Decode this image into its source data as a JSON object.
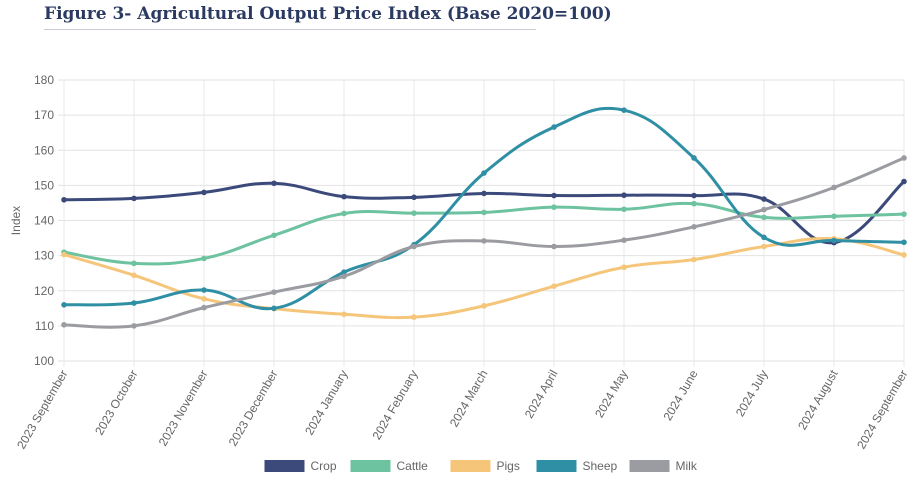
{
  "figure": {
    "title": "Figure 3- Agricultural Output Price Index (Base 2020=100)"
  },
  "chart_data": {
    "type": "line",
    "title": "Figure 3- Agricultural Output Price Index (Base 2020=100)",
    "xlabel": "",
    "ylabel": "Index",
    "ylim": [
      100,
      180
    ],
    "yticks": [
      100,
      110,
      120,
      130,
      140,
      150,
      160,
      170,
      180
    ],
    "grid": true,
    "legend_position": "bottom",
    "categories": [
      "2023 September",
      "2023 October",
      "2023 November",
      "2023 December",
      "2024 January",
      "2024 February",
      "2024 March",
      "2024 April",
      "2024 May",
      "2024 June",
      "2024 July",
      "2024 August",
      "2024 September"
    ],
    "series": [
      {
        "name": "Crop",
        "color": "#3b4a7a",
        "values": [
          145.9,
          146.3,
          148.0,
          150.6,
          146.8,
          146.6,
          147.7,
          147.1,
          147.2,
          147.1,
          146.1,
          133.7,
          151.1
        ]
      },
      {
        "name": "Cattle",
        "color": "#6dc29f",
        "values": [
          131.0,
          127.8,
          129.2,
          135.8,
          142.0,
          142.1,
          142.3,
          143.8,
          143.2,
          144.8,
          140.9,
          141.2,
          141.8
        ]
      },
      {
        "name": "Pigs",
        "color": "#f5c57a",
        "values": [
          130.3,
          124.4,
          117.7,
          114.9,
          113.3,
          112.5,
          115.7,
          121.3,
          126.7,
          128.9,
          132.6,
          134.8,
          130.2
        ]
      },
      {
        "name": "Sheep",
        "color": "#2f8fa4",
        "values": [
          116.0,
          116.5,
          120.2,
          115.0,
          125.3,
          133.1,
          153.5,
          166.6,
          171.4,
          157.8,
          135.2,
          134.3,
          133.8
        ]
      },
      {
        "name": "Milk",
        "color": "#9a9ca2",
        "values": [
          110.3,
          110.0,
          115.2,
          119.6,
          124.1,
          132.6,
          134.2,
          132.6,
          134.4,
          138.2,
          143.1,
          149.4,
          157.8
        ]
      }
    ]
  }
}
